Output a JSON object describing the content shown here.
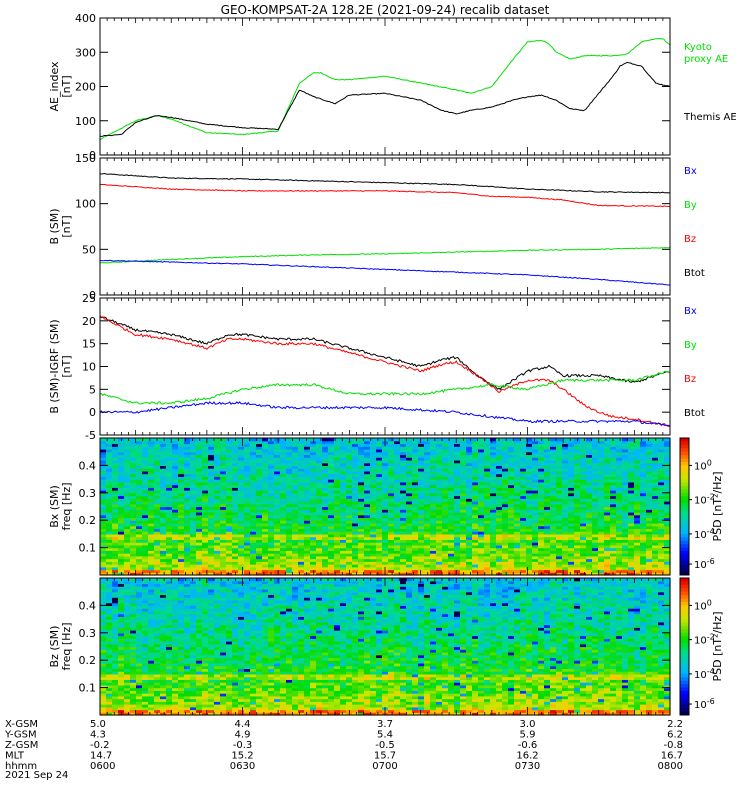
{
  "title": "GEO-KOMPSAT-2A 128.2E (2021-09-24) recalib dataset",
  "colors": {
    "black": "#000000",
    "red": "#ff0000",
    "green": "#00e000",
    "blue": "#0000ff",
    "kyoto": "#00dd00"
  },
  "chart_data": [
    {
      "type": "line",
      "ylabel": [
        "AE_index",
        "[nT]"
      ],
      "ylim": [
        0,
        400
      ],
      "yticks": [
        "0",
        "100",
        "200",
        "300",
        "400"
      ],
      "series": [
        {
          "name": "Kyoto proxy AE",
          "color": "green",
          "x": [
            0,
            5,
            8,
            10,
            15,
            20,
            25,
            28,
            30,
            31,
            33,
            35,
            40,
            45,
            50,
            52,
            55,
            58,
            60,
            62,
            63,
            64,
            66,
            68,
            70,
            72,
            74,
            76,
            78,
            79,
            80
          ],
          "values": [
            45,
            100,
            115,
            105,
            65,
            60,
            70,
            210,
            240,
            240,
            220,
            220,
            230,
            210,
            190,
            180,
            200,
            280,
            330,
            335,
            325,
            300,
            280,
            290,
            290,
            290,
            295,
            330,
            340,
            340,
            320
          ]
        },
        {
          "name": "Themis AE",
          "color": "black",
          "x": [
            0,
            3,
            5,
            8,
            10,
            15,
            20,
            25,
            28,
            30,
            33,
            35,
            40,
            45,
            48,
            50,
            52,
            55,
            58,
            60,
            62,
            64,
            66,
            68,
            70,
            72,
            73,
            74,
            75,
            76,
            78,
            80
          ],
          "values": [
            55,
            60,
            95,
            115,
            110,
            90,
            80,
            75,
            190,
            170,
            150,
            175,
            180,
            160,
            130,
            120,
            130,
            140,
            160,
            170,
            175,
            160,
            135,
            130,
            180,
            230,
            260,
            270,
            265,
            260,
            210,
            200
          ]
        }
      ],
      "legend": [
        {
          "text": "Kyoto",
          "color": "green"
        },
        {
          "text": "proxy AE",
          "color": "green"
        },
        {
          "text": "Themis AE",
          "color": "black"
        }
      ]
    },
    {
      "type": "line",
      "ylabel": [
        "B (SM)",
        "[nT]"
      ],
      "ylim": [
        0,
        150
      ],
      "yticks": [
        "0",
        "50",
        "100",
        "150"
      ],
      "series": [
        {
          "name": "Btot",
          "color": "black",
          "x": [
            0,
            10,
            20,
            30,
            40,
            50,
            60,
            70,
            80
          ],
          "values": [
            133,
            128,
            127,
            125,
            123,
            121,
            116,
            113,
            112
          ]
        },
        {
          "name": "Bz",
          "color": "red",
          "x": [
            0,
            10,
            20,
            30,
            40,
            50,
            55,
            60,
            65,
            70,
            80
          ],
          "values": [
            121,
            116,
            114,
            114,
            114,
            112,
            108,
            107,
            104,
            98,
            97
          ]
        },
        {
          "name": "By",
          "color": "green",
          "x": [
            0,
            10,
            20,
            30,
            40,
            50,
            60,
            70,
            80
          ],
          "values": [
            35,
            39,
            42,
            44,
            45,
            47,
            49,
            50,
            52
          ]
        },
        {
          "name": "Bx",
          "color": "blue",
          "x": [
            0,
            10,
            20,
            30,
            40,
            50,
            60,
            70,
            80
          ],
          "values": [
            38,
            36,
            34,
            31,
            28,
            25,
            22,
            17,
            11
          ]
        }
      ],
      "legend": [
        {
          "text": "Bx",
          "color": "blue"
        },
        {
          "text": "By",
          "color": "green"
        },
        {
          "text": "Bz",
          "color": "red"
        },
        {
          "text": "Btot",
          "color": "black"
        }
      ]
    },
    {
      "type": "line",
      "ylabel": [
        "B (SM)-IGRF (SM)",
        "[nT]"
      ],
      "ylim": [
        -5,
        25
      ],
      "yticks": [
        "-5",
        "0",
        "5",
        "10",
        "15",
        "20",
        "25"
      ],
      "series": [
        {
          "name": "Btot",
          "color": "black",
          "x": [
            0,
            5,
            10,
            15,
            18,
            20,
            25,
            30,
            35,
            40,
            45,
            48,
            50,
            53,
            56,
            60,
            63,
            65,
            70,
            75,
            80
          ],
          "values": [
            21,
            18,
            17,
            15,
            17,
            17,
            16,
            16,
            14,
            12,
            10,
            11.5,
            12,
            8,
            5,
            9,
            10,
            8,
            8,
            6.5,
            9
          ]
        },
        {
          "name": "Bz",
          "color": "red",
          "x": [
            0,
            5,
            10,
            15,
            18,
            20,
            25,
            30,
            35,
            40,
            45,
            48,
            50,
            53,
            56,
            60,
            63,
            65,
            68,
            70,
            72,
            75,
            80
          ],
          "values": [
            21,
            17,
            16,
            14,
            16,
            16,
            15,
            15,
            13,
            11,
            9,
            10.5,
            11,
            8,
            4.5,
            7,
            7,
            5,
            1.5,
            0,
            -1,
            -1.5,
            -3
          ]
        },
        {
          "name": "By",
          "color": "green",
          "x": [
            0,
            5,
            10,
            15,
            20,
            25,
            30,
            35,
            40,
            45,
            50,
            55,
            60,
            65,
            70,
            75,
            80
          ],
          "values": [
            4,
            2,
            2,
            3,
            5,
            6,
            6,
            4,
            4,
            4,
            5,
            6,
            5,
            7,
            7,
            7,
            9
          ]
        },
        {
          "name": "Bx",
          "color": "blue",
          "x": [
            0,
            5,
            10,
            15,
            20,
            25,
            30,
            35,
            40,
            45,
            50,
            55,
            60,
            65,
            70,
            75,
            80
          ],
          "values": [
            0,
            0,
            1,
            2,
            2,
            1,
            1,
            1,
            1,
            0.5,
            0,
            -1,
            -2,
            -2,
            -2,
            -2,
            -3
          ]
        }
      ],
      "legend": [
        {
          "text": "Bx",
          "color": "blue"
        },
        {
          "text": "By",
          "color": "green"
        },
        {
          "text": "Bz",
          "color": "red"
        },
        {
          "text": "Btot",
          "color": "black"
        }
      ]
    },
    {
      "type": "heatmap",
      "ylabel": [
        "Bx (SM)",
        "freq [Hz]"
      ],
      "ylim": [
        0,
        0.5
      ],
      "yticks": [
        "0.1",
        "0.2",
        "0.3",
        "0.4"
      ],
      "colorbar_label": "PSD [nT^2/Hz]",
      "colorbar_ticks": [
        "10^0",
        "10^-2",
        "10^-4",
        "10^-6"
      ],
      "colorscale": "rainbow",
      "description_levels": {
        "low_freq_psd": "10^-1",
        "high_freq_psd": "10^-3"
      }
    },
    {
      "type": "heatmap",
      "ylabel": [
        "Bz (SM)",
        "freq [Hz]"
      ],
      "ylim": [
        0,
        0.5
      ],
      "yticks": [
        "0.1",
        "0.2",
        "0.3",
        "0.4"
      ],
      "colorbar_label": "PSD [nT^2/Hz]",
      "colorbar_ticks": [
        "10^0",
        "10^-2",
        "10^-4",
        "10^-6"
      ],
      "colorscale": "rainbow",
      "description_levels": {
        "low_freq_psd": "10^-1",
        "high_freq_psd": "10^-3"
      }
    }
  ],
  "xaxis": {
    "rows": [
      {
        "label": "X-GSM",
        "values": [
          "5.0",
          "4.4",
          "3.7",
          "3.0",
          "2.2"
        ]
      },
      {
        "label": "Y-GSM",
        "values": [
          "4.3",
          "4.9",
          "5.4",
          "5.9",
          "6.2"
        ]
      },
      {
        "label": "Z-GSM",
        "values": [
          "-0.2",
          "-0.3",
          "-0.5",
          "-0.6",
          "-0.8"
        ]
      },
      {
        "label": "MLT",
        "values": [
          "14.7",
          "15.2",
          "15.7",
          "16.2",
          "16.7"
        ]
      },
      {
        "label": "hhmm",
        "values": [
          "0600",
          "0630",
          "0700",
          "0730",
          "0800"
        ]
      }
    ],
    "date": "2021 Sep 24"
  }
}
